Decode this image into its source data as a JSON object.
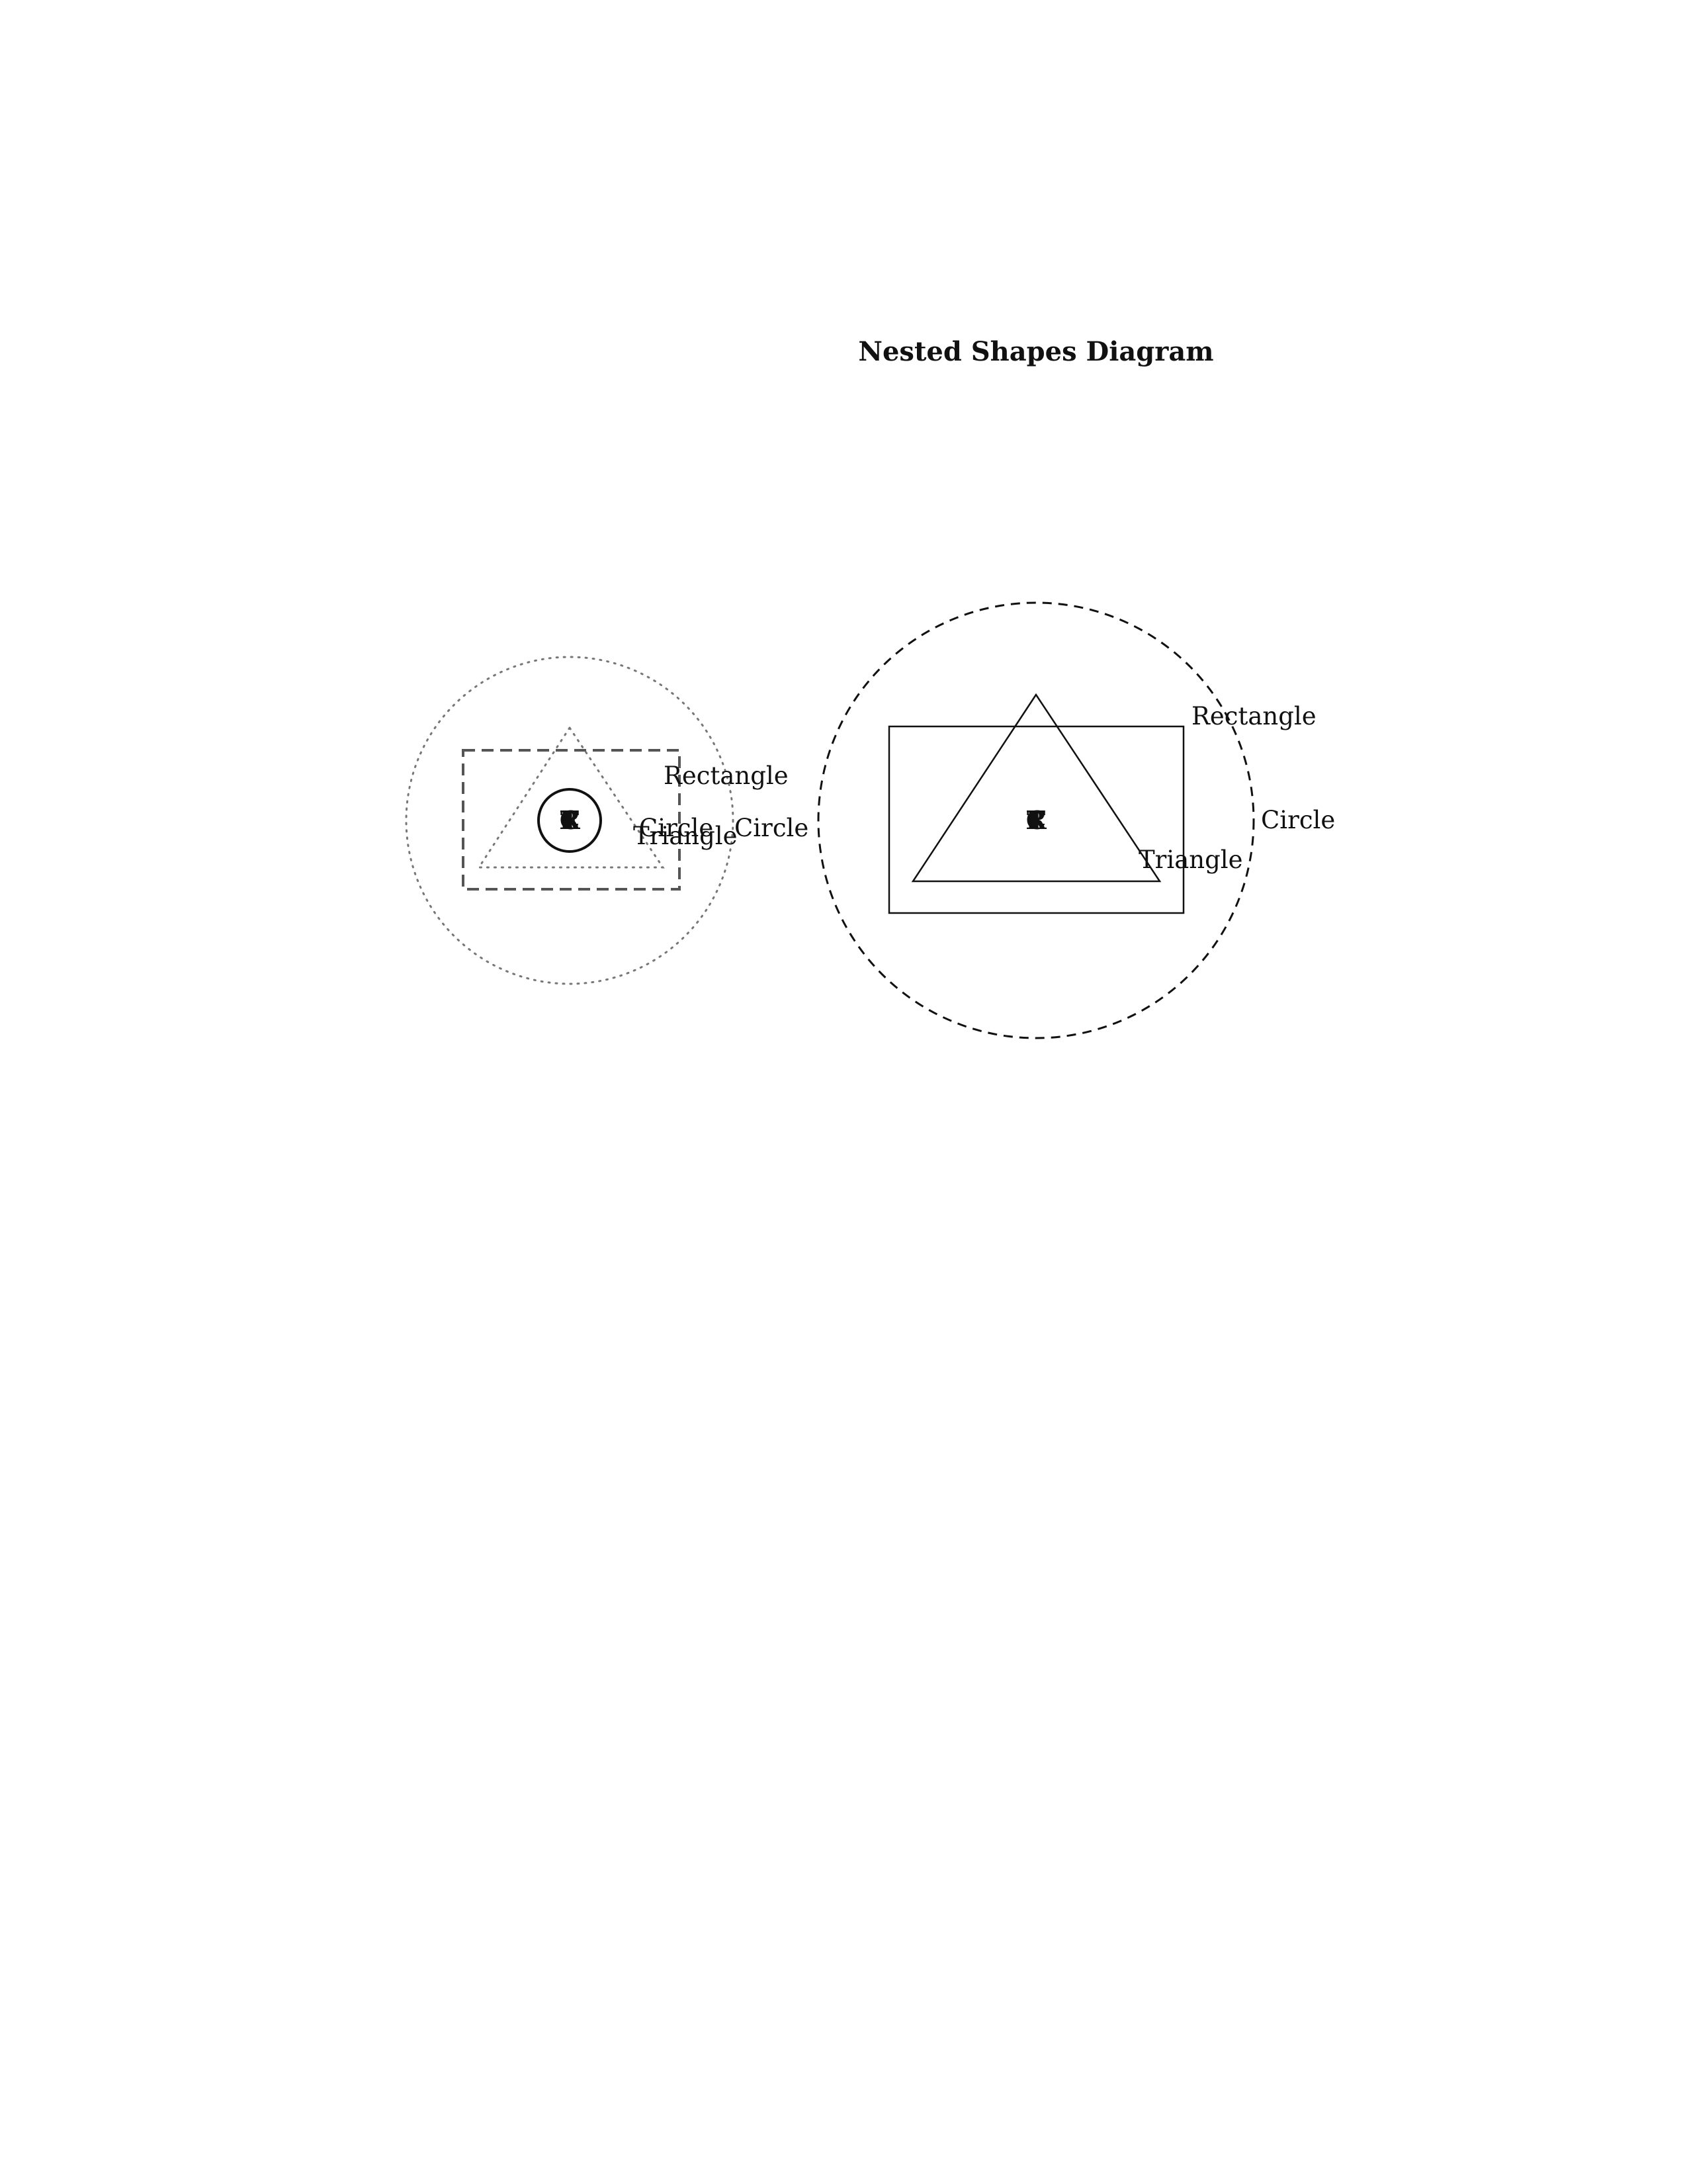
{
  "title": "Nested Shapes Diagram",
  "colors": {
    "stroke_dark": "#111111",
    "stroke_gray": "#555555",
    "dotted_gray": "#777777"
  },
  "left_group": {
    "outer_circle_label": "Circle",
    "rectangle_label": "Rectangle",
    "triangle_label": "Triangle",
    "inner_circle_label": "Circle",
    "center_glyphs": [
      "T",
      "C",
      "R",
      "E"
    ]
  },
  "right_group": {
    "outer_circle_label": "Circle",
    "rectangle_label": "Rectangle",
    "triangle_label": "Triangle",
    "center_glyphs": [
      "T",
      "C",
      "R"
    ]
  }
}
